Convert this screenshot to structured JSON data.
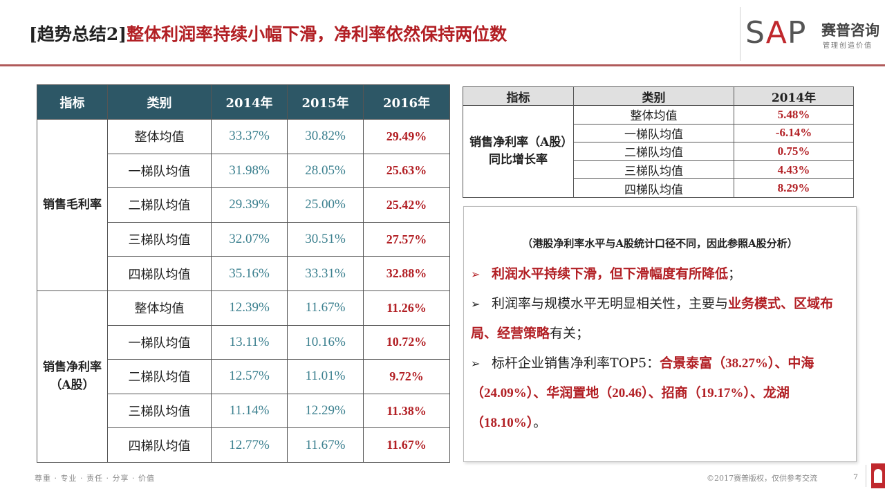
{
  "header": {
    "tag": "[趋势总结2]",
    "title": "整体利润率持续小幅下滑，净利率依然保持两位数"
  },
  "logo": {
    "sap_prefix": "S",
    "sap_a": "A",
    "sap_suffix": "P",
    "cn_name": "赛普咨询",
    "cn_slogan": "管理创造价值"
  },
  "table1": {
    "headers": [
      "指标",
      "类别",
      "2014年",
      "2015年",
      "2016年"
    ],
    "groups": [
      {
        "indicator": "销售毛利率",
        "rows": [
          {
            "category": "整体均值",
            "y2014": "33.37%",
            "y2015": "30.82%",
            "y2016": "29.49%"
          },
          {
            "category": "一梯队均值",
            "y2014": "31.98%",
            "y2015": "28.05%",
            "y2016": "25.63%"
          },
          {
            "category": "二梯队均值",
            "y2014": "29.39%",
            "y2015": "25.00%",
            "y2016": "25.42%"
          },
          {
            "category": "三梯队均值",
            "y2014": "32.07%",
            "y2015": "30.51%",
            "y2016": "27.57%"
          },
          {
            "category": "四梯队均值",
            "y2014": "35.16%",
            "y2015": "33.31%",
            "y2016": "32.88%"
          }
        ]
      },
      {
        "indicator": "销售净利率（A股）",
        "rows": [
          {
            "category": "整体均值",
            "y2014": "12.39%",
            "y2015": "11.67%",
            "y2016": "11.26%"
          },
          {
            "category": "一梯队均值",
            "y2014": "13.11%",
            "y2015": "10.16%",
            "y2016": "10.72%"
          },
          {
            "category": "二梯队均值",
            "y2014": "12.57%",
            "y2015": "11.01%",
            "y2016": "9.72%"
          },
          {
            "category": "三梯队均值",
            "y2014": "11.14%",
            "y2015": "12.29%",
            "y2016": "11.38%"
          },
          {
            "category": "四梯队均值",
            "y2014": "12.77%",
            "y2015": "11.67%",
            "y2016": "11.67%"
          }
        ]
      }
    ]
  },
  "table2": {
    "headers": [
      "指标",
      "类别",
      "2014年"
    ],
    "indicator": "销售净利率（A股）同比增长率",
    "rows": [
      {
        "category": "整体均值",
        "value": "5.48%"
      },
      {
        "category": "一梯队均值",
        "value": "-6.14%"
      },
      {
        "category": "二梯队均值",
        "value": "0.75%"
      },
      {
        "category": "三梯队均值",
        "value": "4.43%"
      },
      {
        "category": "四梯队均值",
        "value": "8.29%"
      }
    ]
  },
  "summary": {
    "note": "（港股净利率水平与A股统计口径不同，因此参照A股分析）",
    "bullet_icon": "➢",
    "b1": "利润水平持续下滑，但下滑幅度有所降低",
    "b1_end": "；",
    "b2_pre": "利润率与规模水平无明显相关性，主要与",
    "b2_hl1": "业务模式",
    "b2_sep1": "、",
    "b2_hl2": "区域布局",
    "b2_sep2": "、",
    "b2_hl3": "经营策略",
    "b2_post": "有关；",
    "b3_pre": "标杆企业销售净利率TOP5：",
    "b3_c1": "合景泰富",
    "b3_v1": "（38.27%）",
    "b3_sep1": "、",
    "b3_c2": "中海",
    "b3_v2": "（24.09%）",
    "b3_sep2": "、",
    "b3_c3": "华润置地",
    "b3_v3": "（20.46）",
    "b3_sep3": "、",
    "b3_c4": "招商",
    "b3_v4": "（19.17%）",
    "b3_sep4": "、",
    "b3_c5": "龙湖",
    "b3_v5": "（18.10%）",
    "b3_end": "。"
  },
  "footer": {
    "values": "尊重 · 专业 · 责任 · 分享 · 价值",
    "copyright": "©2017赛普版权，仅供参考交流",
    "page": "7"
  },
  "colors": {
    "accent_red": "#b21f24",
    "header_teal": "#2d5766",
    "value_teal": "#3a7f8e"
  }
}
